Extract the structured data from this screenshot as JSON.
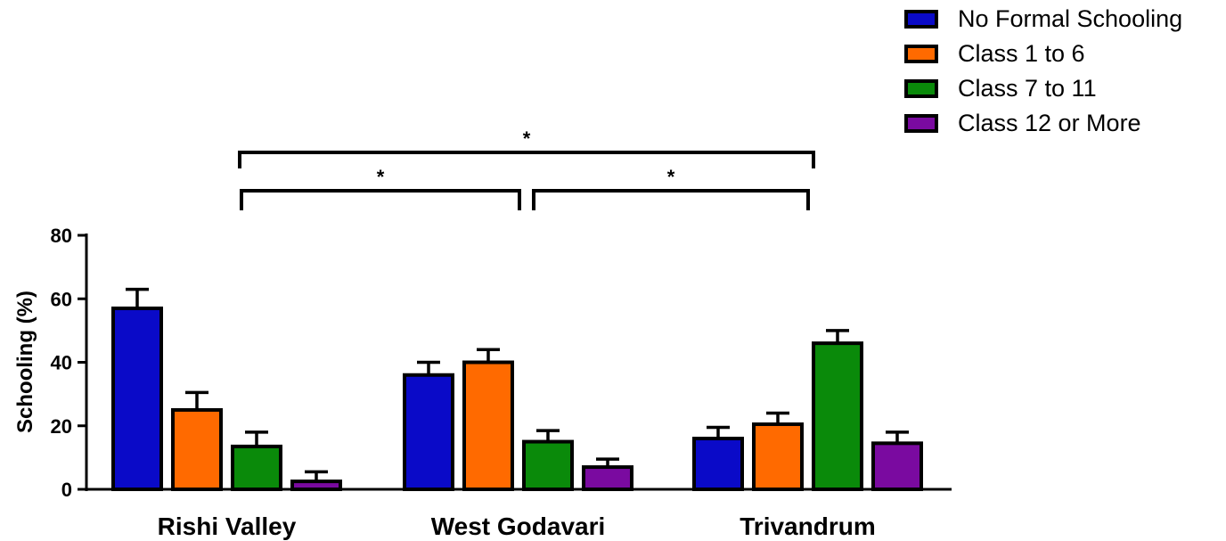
{
  "chart_data": {
    "type": "bar",
    "title": "",
    "xlabel": "",
    "ylabel": "Schooling (%)",
    "ylim": [
      0,
      80
    ],
    "yticks": [
      0,
      20,
      40,
      60,
      80
    ],
    "categories": [
      "Rishi Valley",
      "West Godavari",
      "Trivandrum"
    ],
    "series": [
      {
        "name": "No Formal Schooling",
        "color": "#0a0ac8",
        "values": [
          57,
          36,
          16
        ],
        "errors": [
          6,
          4,
          3.5
        ]
      },
      {
        "name": "Class 1 to 6",
        "color": "#ff6a00",
        "values": [
          25,
          40,
          20.5
        ],
        "errors": [
          5.5,
          4,
          3.5
        ]
      },
      {
        "name": "Class 7 to 11",
        "color": "#0a8a0a",
        "values": [
          13.5,
          15,
          46
        ],
        "errors": [
          4.5,
          3.5,
          4
        ]
      },
      {
        "name": "Class 12 or More",
        "color": "#7a0aa0",
        "values": [
          2.5,
          7,
          14.5
        ],
        "errors": [
          3,
          2.5,
          3.5
        ]
      }
    ],
    "legend_position": "top-right",
    "significance": [
      {
        "from": "Rishi Valley",
        "to": "Trivandrum",
        "label": "*"
      },
      {
        "from": "Rishi Valley",
        "to": "West Godavari",
        "label": "*"
      },
      {
        "from": "West Godavari",
        "to": "Trivandrum",
        "label": "*"
      }
    ]
  }
}
